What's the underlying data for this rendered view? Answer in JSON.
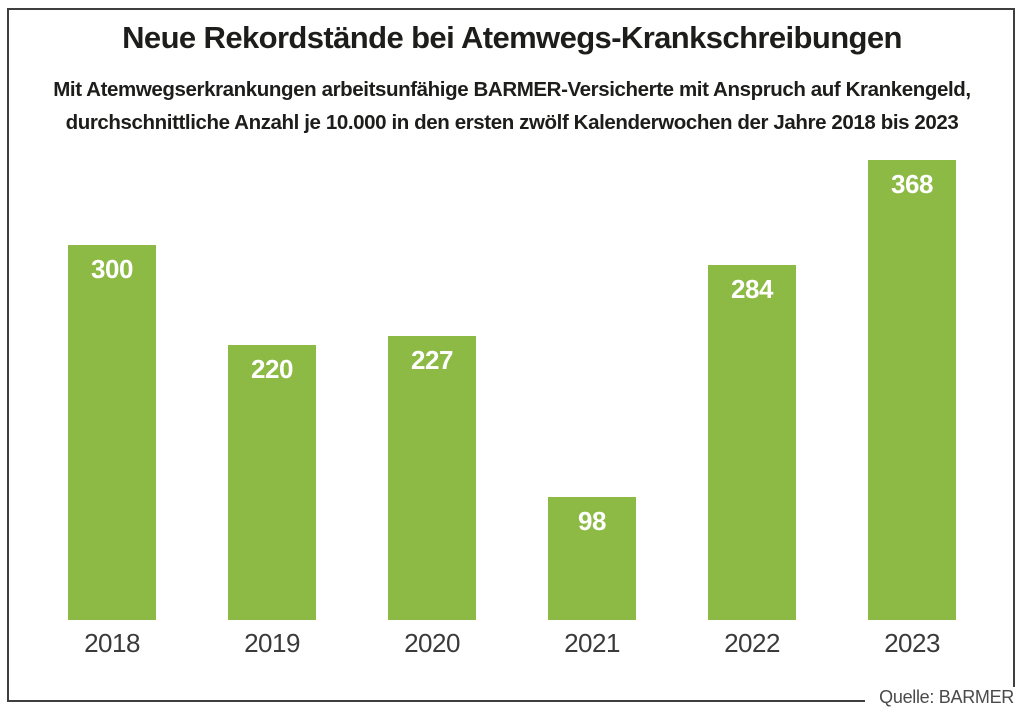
{
  "header": {
    "title": "Neue Rekordstände bei Atemwegs-Krankschreibungen",
    "subtitle_line1": "Mit Atemwegserkrankungen arbeitsunfähige BARMER-Versicherte mit Anspruch auf Krankengeld,",
    "subtitle_line2": "durchschnittliche Anzahl je 10.000 in den ersten zwölf Kalenderwochen der Jahre 2018 bis 2023"
  },
  "footer": {
    "source": "Quelle: BARMER"
  },
  "colors": {
    "bar": "#8CBA45",
    "value_label": "#FFFFFF",
    "text": "#1D1D1B",
    "axis_label": "#3A3A3A",
    "source_text": "#4A4A4A",
    "border": "#3F3F3F"
  },
  "chart_data": {
    "type": "bar",
    "categories": [
      "2018",
      "2019",
      "2020",
      "2021",
      "2022",
      "2023"
    ],
    "values": [
      300,
      220,
      227,
      98,
      284,
      368
    ],
    "title": "Neue Rekordstände bei Atemwegs-Krankschreibungen",
    "subtitle": "Mit Atemwegserkrankungen arbeitsunfähige BARMER-Versicherte mit Anspruch auf Krankengeld, durchschnittliche Anzahl je 10.000 in den ersten zwölf Kalenderwochen der Jahre 2018 bis 2023",
    "xlabel": "",
    "ylabel": "",
    "ylim": [
      0,
      384
    ],
    "grid": false,
    "legend": false,
    "value_labels_inside_bars": true,
    "bar_color": "#8CBA45",
    "source": "Quelle: BARMER"
  }
}
